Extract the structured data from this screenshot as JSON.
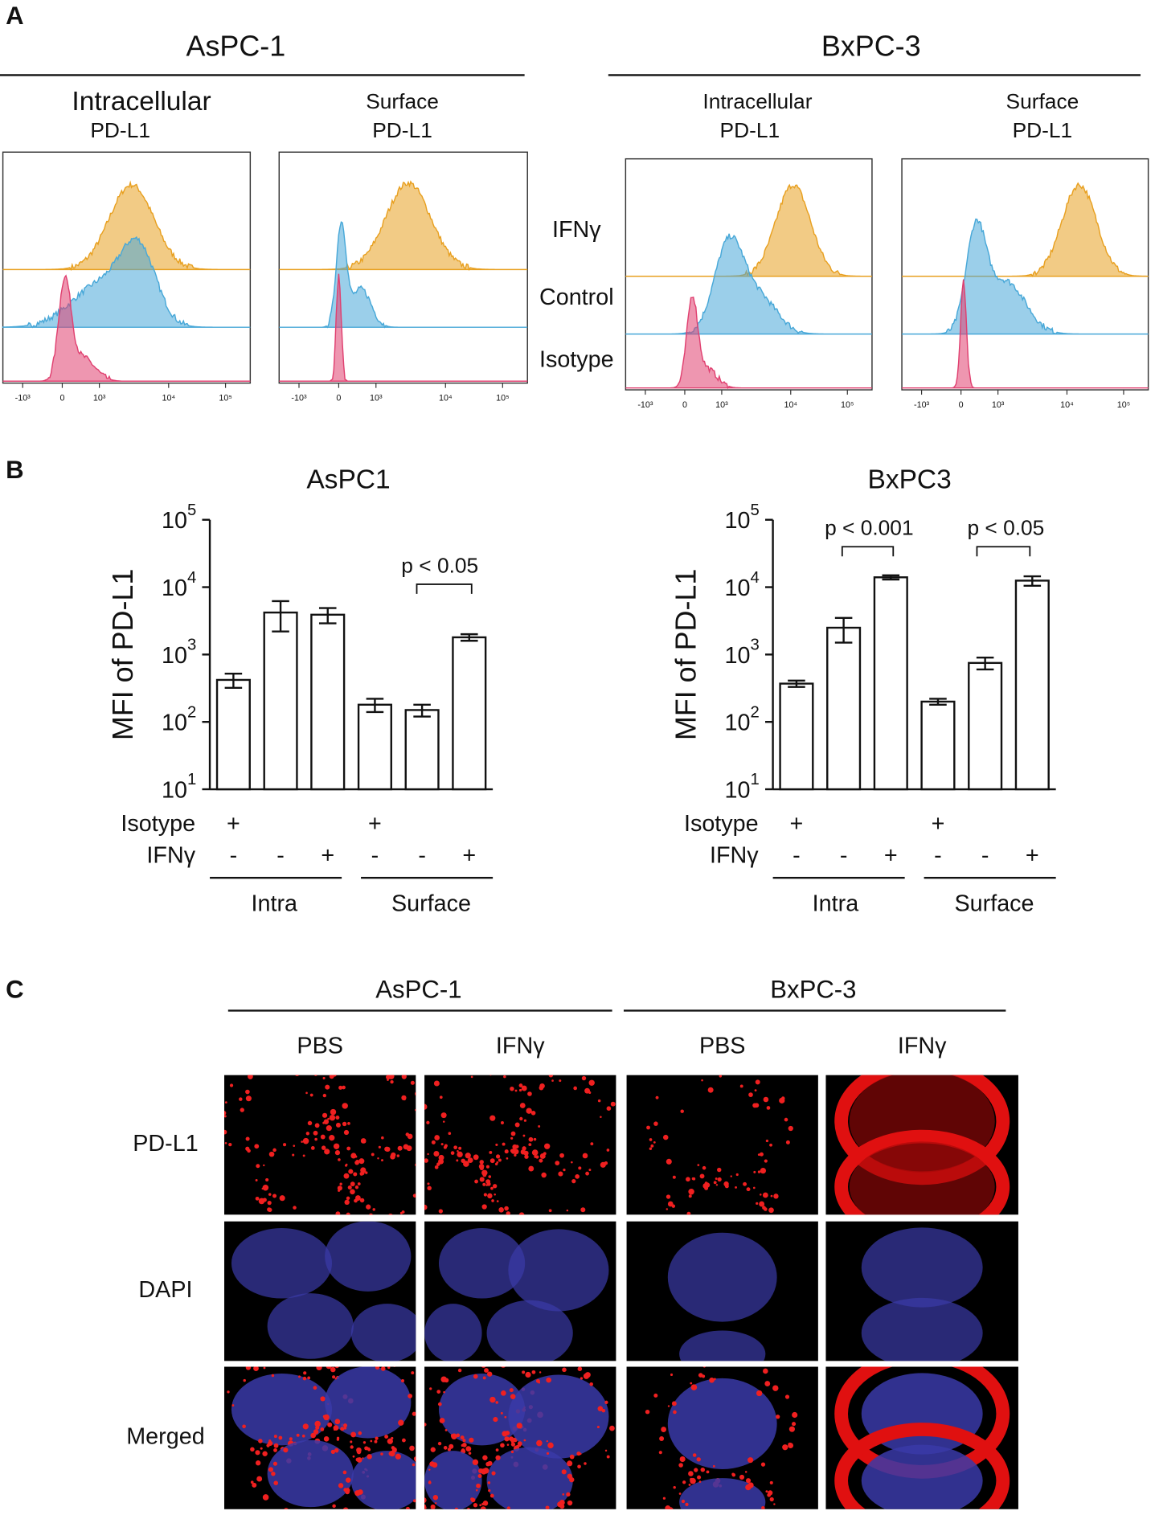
{
  "panel_a": {
    "letter": "A",
    "groups": [
      "AsPC-1",
      "BxPC-3"
    ],
    "plots": [
      {
        "title": "Intracellular",
        "subtitle": "PD-L1"
      },
      {
        "title": "Surface",
        "subtitle": "PD-L1"
      },
      {
        "title": "Intracellular",
        "subtitle": "PD-L1"
      },
      {
        "title": "Surface",
        "subtitle": "PD-L1"
      }
    ],
    "legend": [
      {
        "name": "IFNγ",
        "color": "#e8a020"
      },
      {
        "name": "Control",
        "color": "#48a8d8"
      },
      {
        "name": "Isotype",
        "color": "#e04070"
      }
    ],
    "axis_ticks": [
      "-10³",
      "0",
      "10³",
      "10⁴",
      "10⁵"
    ]
  },
  "panel_b": {
    "letter": "B"
  },
  "chart_data": [
    {
      "type": "bar",
      "title": "AsPC1",
      "ylabel": "MFI of PD-L1",
      "log_scale": true,
      "ylim": [
        10,
        100000
      ],
      "yticks": [
        {
          "value": 10,
          "label": "10",
          "exponent": "1"
        },
        {
          "value": 100,
          "label": "10",
          "exponent": "2"
        },
        {
          "value": 1000,
          "label": "10",
          "exponent": "3"
        },
        {
          "value": 10000,
          "label": "10",
          "exponent": "4"
        },
        {
          "value": 100000,
          "label": "10",
          "exponent": "5"
        }
      ],
      "values": [
        420,
        4200,
        3900,
        180,
        150,
        1800
      ],
      "errors": [
        100,
        2000,
        1000,
        40,
        30,
        200
      ],
      "color": "#ffffff",
      "row_labels": [
        "Isotype",
        "IFNγ"
      ],
      "rows": [
        [
          "+",
          null,
          null,
          "+",
          null,
          null
        ],
        [
          "-",
          "-",
          "+",
          "-",
          "-",
          "+"
        ]
      ],
      "groups": [
        "Intra",
        "Surface"
      ],
      "annotations": [
        "p < 0.05"
      ]
    },
    {
      "type": "bar",
      "title": "BxPC3",
      "ylabel": "MFI of PD-L1",
      "log_scale": true,
      "ylim": [
        10,
        100000
      ],
      "yticks": [
        {
          "value": 10,
          "label": "10",
          "exponent": "1"
        },
        {
          "value": 100,
          "label": "10",
          "exponent": "2"
        },
        {
          "value": 1000,
          "label": "10",
          "exponent": "3"
        },
        {
          "value": 10000,
          "label": "10",
          "exponent": "4"
        },
        {
          "value": 100000,
          "label": "10",
          "exponent": "5"
        }
      ],
      "values": [
        370,
        2500,
        14000,
        200,
        750,
        12500
      ],
      "errors": [
        40,
        1000,
        1000,
        20,
        150,
        2000
      ],
      "color": "#ffffff",
      "row_labels": [
        "Isotype",
        "IFNγ"
      ],
      "rows": [
        [
          "+",
          null,
          null,
          "+",
          null,
          null
        ],
        [
          "-",
          "-",
          "+",
          "-",
          "-",
          "+"
        ]
      ],
      "groups": [
        "Intra",
        "Surface"
      ],
      "annotations": [
        "p < 0.001",
        "p < 0.05"
      ]
    }
  ],
  "panel_c": {
    "letter": "C",
    "groups": [
      "AsPC-1",
      "BxPC-3"
    ],
    "columns": [
      "PBS",
      "IFNγ",
      "PBS",
      "IFNγ"
    ],
    "rows": [
      "PD-L1",
      "DAPI",
      "Merged"
    ]
  }
}
